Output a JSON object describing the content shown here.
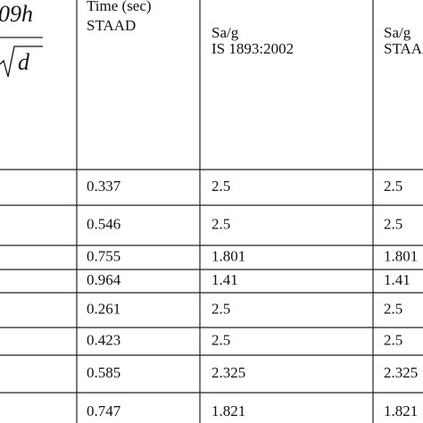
{
  "table": {
    "formula": {
      "numerator": "09h",
      "denominator": "d"
    },
    "header": [
      [
        "Time (sec)",
        "STAAD"
      ],
      [
        "Sa/g",
        "IS 1893:2002"
      ],
      [
        "Sa/g",
        "STAAD"
      ]
    ],
    "rows": [
      [
        "0.337",
        "2.5",
        "2.5"
      ],
      [
        "0.546",
        "2.5",
        "2.5"
      ],
      [
        "0.755",
        "1.801",
        "1.801"
      ],
      [
        "0.964",
        "1.41",
        "1.41"
      ],
      [
        "0.261",
        "2.5",
        "2.5"
      ],
      [
        "0.423",
        "2.5",
        "2.5"
      ],
      [
        "0.585",
        "2.325",
        "2.325"
      ],
      [
        "0.747",
        "1.821",
        "1.821"
      ]
    ]
  }
}
